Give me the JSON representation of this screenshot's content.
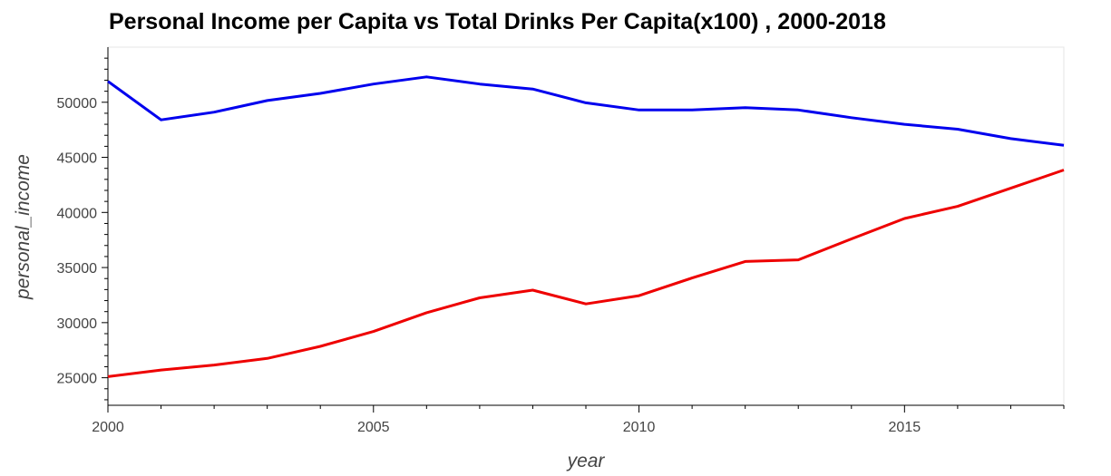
{
  "chart_data": {
    "type": "line",
    "title": "Personal Income per Capita vs Total Drinks Per Capita(x100) , 2000-2018",
    "xlabel": "year",
    "ylabel": "personal_income",
    "xlim": [
      2000,
      2018
    ],
    "ylim": [
      22500,
      55000
    ],
    "x_ticks": [
      2000,
      2005,
      2010,
      2015
    ],
    "y_ticks": [
      25000,
      30000,
      35000,
      40000,
      45000,
      50000
    ],
    "grid": false,
    "x": [
      2000,
      2001,
      2002,
      2003,
      2004,
      2005,
      2006,
      2007,
      2008,
      2009,
      2010,
      2011,
      2012,
      2013,
      2014,
      2015,
      2016,
      2017,
      2018
    ],
    "series": [
      {
        "color": "#0000ee",
        "values": [
          51900,
          48400,
          49100,
          50150,
          50800,
          51650,
          52300,
          51650,
          51200,
          49950,
          49300,
          49300,
          49500,
          49300,
          48600,
          48000,
          47550,
          46700,
          46100
        ]
      },
      {
        "color": "#ee0000",
        "values": [
          25100,
          25700,
          26150,
          26750,
          27850,
          29200,
          30900,
          32250,
          32950,
          31700,
          32450,
          34050,
          35550,
          35700,
          37600,
          39450,
          40550,
          42200,
          43850
        ]
      }
    ]
  }
}
